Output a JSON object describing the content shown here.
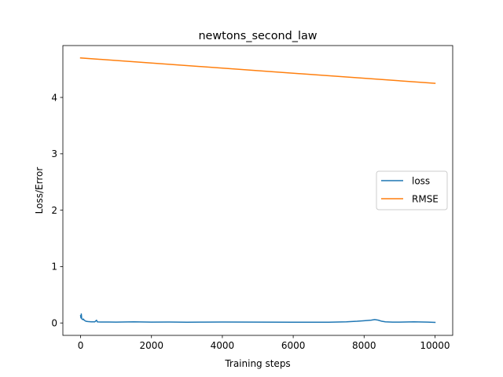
{
  "chart_data": {
    "type": "line",
    "title": "newtons_second_law",
    "xlabel": "Training steps",
    "ylabel": "Loss/Error",
    "xlim": [
      -500,
      10500
    ],
    "ylim": [
      -0.22,
      4.92
    ],
    "xticks": [
      0,
      2000,
      4000,
      6000,
      8000,
      10000
    ],
    "yticks": [
      0,
      1,
      2,
      3,
      4
    ],
    "grid": false,
    "legend_position": "center-right",
    "series": [
      {
        "name": "loss",
        "color": "#1f77b4",
        "x": [
          0,
          10,
          20,
          30,
          40,
          60,
          80,
          100,
          150,
          200,
          300,
          400,
          450,
          470,
          500,
          600,
          800,
          1000,
          1500,
          2000,
          2500,
          3000,
          3500,
          4000,
          5000,
          6000,
          7000,
          7500,
          7800,
          8000,
          8200,
          8300,
          8400,
          8500,
          8600,
          8800,
          9000,
          9400,
          9800,
          10000
        ],
        "y": [
          0.13,
          0.09,
          0.16,
          0.08,
          0.07,
          0.06,
          0.07,
          0.05,
          0.03,
          0.025,
          0.02,
          0.02,
          0.05,
          0.02,
          0.018,
          0.017,
          0.016,
          0.015,
          0.02,
          0.015,
          0.016,
          0.014,
          0.015,
          0.016,
          0.015,
          0.014,
          0.014,
          0.02,
          0.03,
          0.04,
          0.05,
          0.06,
          0.05,
          0.03,
          0.02,
          0.015,
          0.015,
          0.02,
          0.015,
          0.01
        ]
      },
      {
        "name": "RMSE",
        "color": "#ff7f0e",
        "x": [
          0,
          10000
        ],
        "y": [
          4.7,
          4.25
        ]
      }
    ]
  }
}
